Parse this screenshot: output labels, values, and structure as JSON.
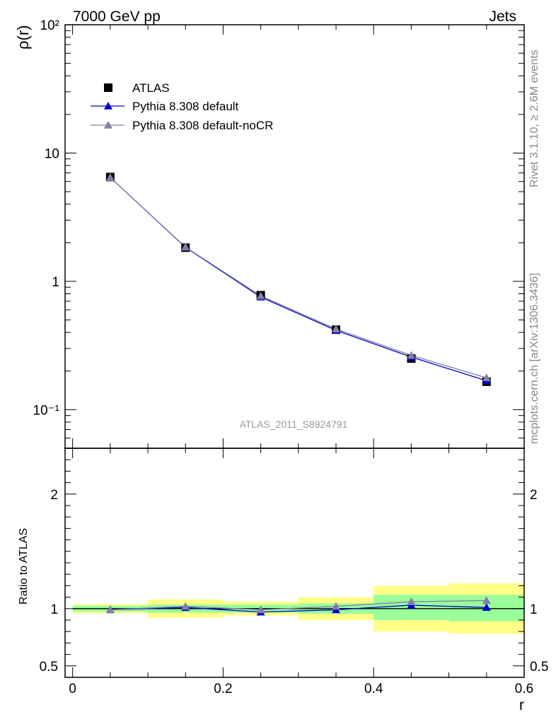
{
  "header": {
    "left": "7000 GeV pp",
    "right": "Jets"
  },
  "side_labels": {
    "rivet": "Rivet 3.1.10, ≥ 2.6M events",
    "mcplots": "mcplots.cern.ch [arXiv:1306.3436]"
  },
  "chart_data": [
    {
      "type": "scatter",
      "panel": "main",
      "ylabel": "ρ(r)",
      "yscale": "log",
      "ylim": [
        0.05,
        100
      ],
      "xlim": [
        -0.01,
        0.6
      ],
      "y_tick_labels": [
        "10⁻¹",
        "1",
        "10",
        "10²"
      ],
      "watermark": "ATLAS_2011_S8924791",
      "legend_position": "top-left",
      "x": [
        0.05,
        0.15,
        0.25,
        0.35,
        0.45,
        0.55
      ],
      "series": [
        {
          "name": "ATLAS",
          "marker": "square",
          "color": "#000000",
          "values": [
            6.5,
            1.83,
            0.78,
            0.42,
            0.25,
            0.165
          ]
        },
        {
          "name": "Pythia 8.308 default",
          "marker": "triangle",
          "color": "#0000cc",
          "values": [
            6.45,
            1.84,
            0.755,
            0.415,
            0.257,
            0.168
          ]
        },
        {
          "name": "Pythia 8.308 default-noCR",
          "marker": "triangle",
          "color": "#7f7fa6",
          "values": [
            6.45,
            1.85,
            0.77,
            0.425,
            0.265,
            0.177
          ]
        }
      ]
    },
    {
      "type": "line",
      "panel": "ratio",
      "ylabel": "Ratio to ATLAS",
      "xlabel": "r",
      "ylim": [
        0.4,
        2.4
      ],
      "xlim": [
        -0.01,
        0.6
      ],
      "y_tick_labels": [
        "0.5",
        "1",
        "2"
      ],
      "x_tick_labels": [
        "0",
        "0.2",
        "0.4",
        "0.6"
      ],
      "bins": [
        [
          0.0,
          0.1
        ],
        [
          0.1,
          0.2
        ],
        [
          0.2,
          0.3
        ],
        [
          0.3,
          0.4
        ],
        [
          0.4,
          0.5
        ],
        [
          0.5,
          0.6
        ]
      ],
      "band_stat": {
        "color": "#99ff99",
        "low": [
          0.975,
          0.965,
          0.965,
          0.955,
          0.9,
          0.89
        ],
        "high": [
          1.025,
          1.035,
          1.035,
          1.045,
          1.12,
          1.12
        ]
      },
      "band_total": {
        "color": "#ffff88",
        "low": [
          0.96,
          0.92,
          0.94,
          0.9,
          0.8,
          0.78
        ],
        "high": [
          1.04,
          1.08,
          1.06,
          1.1,
          1.2,
          1.22
        ]
      },
      "x": [
        0.05,
        0.15,
        0.25,
        0.35,
        0.45,
        0.55
      ],
      "series": [
        {
          "name": "Pythia 8.308 default",
          "color": "#0000cc",
          "values": [
            0.99,
            1.01,
            0.97,
            0.99,
            1.03,
            1.01
          ]
        },
        {
          "name": "Pythia 8.308 default-noCR",
          "color": "#7f7fa6",
          "values": [
            0.99,
            1.02,
            0.99,
            1.02,
            1.06,
            1.07
          ]
        }
      ]
    }
  ]
}
